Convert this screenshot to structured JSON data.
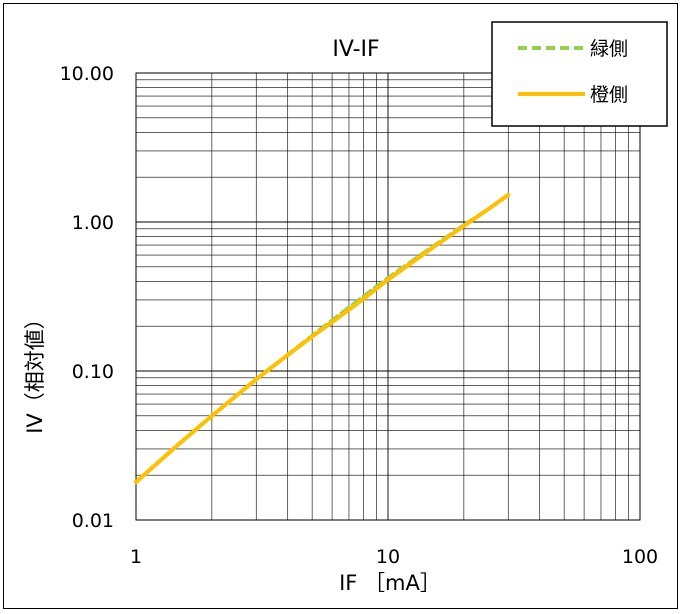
{
  "chart_data": {
    "type": "line",
    "title": "IV-IF",
    "xlabel": "IF ［mA］",
    "ylabel": "IV（相対値）",
    "x_scale": "log",
    "y_scale": "log",
    "xlim": [
      1,
      100
    ],
    "ylim": [
      0.01,
      10
    ],
    "x_ticks": [
      "1",
      "10",
      "100"
    ],
    "y_ticks": [
      "0.01",
      "0.10",
      "1.00",
      "10.00"
    ],
    "grid": true,
    "legend_position": "top-right",
    "series": [
      {
        "name": "緑側",
        "color": "#92d050",
        "dash": "dashed",
        "x": [
          1,
          1.5,
          2,
          3,
          4,
          5,
          6,
          7,
          8,
          10,
          15,
          20,
          25,
          30
        ],
        "y": [
          0.018,
          0.033,
          0.05,
          0.088,
          0.128,
          0.172,
          0.218,
          0.266,
          0.316,
          0.42,
          0.68,
          0.95,
          1.22,
          1.52
        ]
      },
      {
        "name": "橙側",
        "color": "#ffc000",
        "dash": "solid",
        "x": [
          1,
          1.5,
          2,
          3,
          4,
          5,
          6,
          7,
          8,
          10,
          15,
          20,
          25,
          30
        ],
        "y": [
          0.018,
          0.033,
          0.05,
          0.088,
          0.128,
          0.17,
          0.213,
          0.258,
          0.305,
          0.41,
          0.67,
          0.94,
          1.22,
          1.52
        ]
      }
    ]
  }
}
